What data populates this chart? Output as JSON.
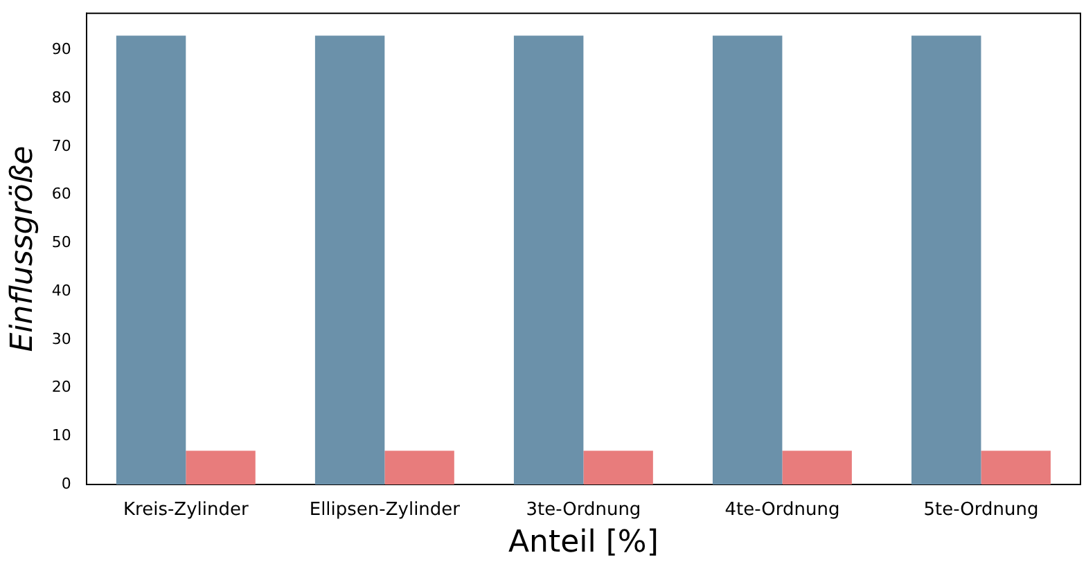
{
  "chart_data": {
    "type": "bar",
    "xlabel": "Anteil [%]",
    "ylabel": "Einflussgröße",
    "categories": [
      "Kreis-Zylinder",
      "Ellipsen-Zylinder",
      "3te-Ordnung",
      "4te-Ordnung",
      "5te-Ordnung"
    ],
    "series": [
      {
        "color": "#6b91aa",
        "values": [
          93,
          93,
          93,
          93,
          93
        ]
      },
      {
        "color": "#e87c7c",
        "values": [
          7,
          7,
          7,
          7,
          7
        ]
      }
    ],
    "ylim": [
      0,
      97.65
    ],
    "yticks": [
      0,
      10,
      20,
      30,
      40,
      50,
      60,
      70,
      80,
      90
    ],
    "grid": false,
    "legend": false
  }
}
